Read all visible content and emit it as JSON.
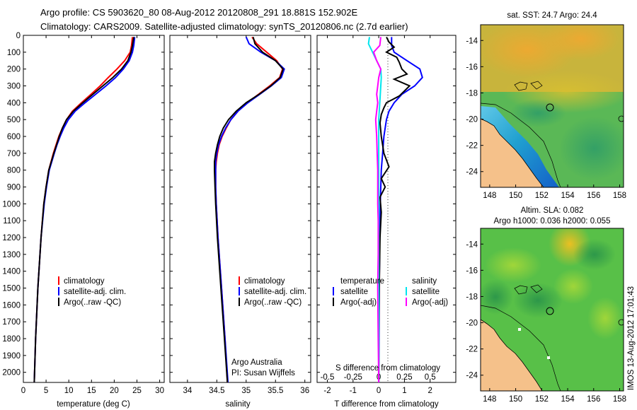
{
  "header": {
    "line1": "Argo profile: CS 5903620_80 08-Aug-2012 20120808_291 18.881S 152.902E",
    "line2": "Climatology: CARS2009. Satellite-adjusted climatology: synTS_20120806.nc (2.7d earlier)"
  },
  "side_stamp": "IMOS 13-Aug-2012 17:01:43",
  "colors": {
    "climatology": "#ff0000",
    "satellite": "#0000ff",
    "argo": "#000000",
    "s_satellite": "#00e5ee",
    "s_argo": "#ff00ff",
    "land": "#f5c18a",
    "coast": "#000000"
  },
  "chart_data": [
    {
      "type": "line",
      "name": "temperature-profile",
      "xlabel": "temperature (deg C)",
      "ylabel": "",
      "xlim": [
        0,
        31
      ],
      "ylim": [
        2060,
        0
      ],
      "x_ticks": [
        0,
        5,
        10,
        15,
        20,
        25,
        30
      ],
      "y_ticks": [
        0,
        100,
        200,
        300,
        400,
        500,
        600,
        700,
        800,
        900,
        1000,
        1100,
        1200,
        1300,
        1400,
        1500,
        1600,
        1700,
        1800,
        1900,
        2000
      ],
      "legend": [
        "climatology",
        "satellite-adj. clim.",
        "Argo(..raw -QC)"
      ],
      "legend_position": "lower-right",
      "series": [
        {
          "name": "climatology",
          "color": "#ff0000",
          "depth": [
            10,
            60,
            100,
            150,
            200,
            250,
            300,
            350,
            400,
            450,
            500,
            550,
            600,
            650,
            700,
            800,
            900,
            1000,
            1200,
            1500,
            1800,
            2060
          ],
          "value": [
            24.0,
            23.8,
            23.5,
            22.3,
            20.6,
            18.7,
            16.9,
            14.9,
            12.8,
            10.8,
            9.5,
            8.6,
            7.8,
            7.2,
            6.6,
            5.6,
            5.0,
            4.5,
            3.9,
            3.2,
            2.7,
            2.4
          ]
        },
        {
          "name": "satellite-adj. clim.",
          "color": "#0000ff",
          "depth": [
            10,
            60,
            100,
            150,
            200,
            250,
            300,
            350,
            400,
            450,
            500,
            550,
            600,
            650,
            700,
            800,
            900,
            1000,
            1200,
            1500,
            1800,
            2060
          ],
          "value": [
            24.5,
            24.3,
            24.0,
            23.3,
            22.0,
            20.3,
            18.2,
            15.9,
            13.6,
            11.4,
            9.9,
            8.9,
            8.1,
            7.4,
            6.8,
            5.7,
            5.1,
            4.6,
            3.9,
            3.2,
            2.7,
            2.4
          ]
        },
        {
          "name": "Argo(..raw -QC)",
          "color": "#000000",
          "depth": [
            10,
            60,
            100,
            150,
            200,
            250,
            300,
            350,
            400,
            450,
            500,
            550,
            600,
            650,
            700,
            800,
            900,
            1000,
            1200,
            1500,
            1800,
            2060
          ],
          "value": [
            24.3,
            24.0,
            23.7,
            23.0,
            21.6,
            19.7,
            17.5,
            15.3,
            13.1,
            11.0,
            9.5,
            8.6,
            7.9,
            7.3,
            6.7,
            5.6,
            5.0,
            4.5,
            3.9,
            3.2,
            2.7,
            2.4
          ]
        }
      ]
    },
    {
      "type": "line",
      "name": "salinity-profile",
      "xlabel": "salinity",
      "xlim": [
        33.7,
        36.1
      ],
      "ylim": [
        2060,
        0
      ],
      "x_ticks": [
        34,
        34.5,
        35,
        35.5,
        36
      ],
      "legend": [
        "climatology",
        "satellite-adj. clim.",
        "Argo(..raw -QC)"
      ],
      "legend_position": "lower-right",
      "annotation": [
        "Argo Australia",
        "PI: Susan Wijffels"
      ],
      "series": [
        {
          "name": "climatology",
          "color": "#ff0000",
          "depth": [
            10,
            50,
            100,
            150,
            200,
            250,
            300,
            350,
            400,
            450,
            500,
            550,
            600,
            650,
            700,
            750,
            800,
            900,
            1000,
            1200,
            1500,
            1800,
            2060
          ],
          "value": [
            35.1,
            35.18,
            35.35,
            35.52,
            35.62,
            35.57,
            35.4,
            35.21,
            35.02,
            34.86,
            34.74,
            34.66,
            34.59,
            34.54,
            34.51,
            34.49,
            34.48,
            34.48,
            34.49,
            34.52,
            34.58,
            34.64,
            34.68
          ]
        },
        {
          "name": "satellite-adj. clim.",
          "color": "#0000ff",
          "depth": [
            10,
            50,
            100,
            150,
            200,
            250,
            300,
            350,
            400,
            450,
            500,
            550,
            600,
            650,
            700,
            750,
            800,
            900,
            1000,
            1200,
            1500,
            1800,
            2060
          ],
          "value": [
            35.0,
            35.05,
            35.25,
            35.5,
            35.65,
            35.6,
            35.43,
            35.23,
            35.03,
            34.86,
            34.74,
            34.65,
            34.58,
            34.53,
            34.5,
            34.48,
            34.48,
            34.48,
            34.49,
            34.52,
            34.58,
            34.64,
            34.69
          ]
        },
        {
          "name": "Argo(..raw -QC)",
          "color": "#000000",
          "depth": [
            10,
            50,
            100,
            150,
            200,
            250,
            300,
            350,
            400,
            450,
            500,
            550,
            600,
            650,
            700,
            750,
            800,
            900,
            1000,
            1200,
            1500,
            1800,
            2060
          ],
          "value": [
            35.12,
            35.15,
            35.28,
            35.5,
            35.63,
            35.58,
            35.42,
            35.22,
            35.0,
            34.83,
            34.7,
            34.61,
            34.55,
            34.51,
            34.48,
            34.46,
            34.46,
            34.47,
            34.48,
            34.51,
            34.57,
            34.63,
            34.68
          ]
        }
      ]
    },
    {
      "type": "line",
      "name": "difference-profile",
      "xlabel_bottom": "T difference from climatology",
      "xlabel_top": "S difference from climatology",
      "xlim": [
        -2.4,
        3.0
      ],
      "ylim": [
        2060,
        0
      ],
      "x_ticks": [
        -2,
        -1,
        0,
        1,
        2
      ],
      "x_ticks_top": [
        -0.5,
        -0.25,
        0,
        0.25,
        0.5
      ],
      "legend": [
        {
          "group": "temperature",
          "items": [
            "satellite",
            "Argo(-adj)"
          ]
        },
        {
          "group": "salinity",
          "items": [
            "satellite",
            "Argo(-adj)"
          ]
        }
      ],
      "legend_position": "top",
      "series": [
        {
          "name": "temperature satellite",
          "color": "#0000ff",
          "depth": [
            10,
            60,
            100,
            150,
            200,
            250,
            300,
            350,
            400,
            450,
            500,
            600,
            700,
            800,
            1000,
            1200,
            1500,
            1800,
            2060
          ],
          "value": [
            0.5,
            0.5,
            0.6,
            1.1,
            1.6,
            1.7,
            1.4,
            0.9,
            0.6,
            0.4,
            0.3,
            0.2,
            0.15,
            0.1,
            0.06,
            0.04,
            0.02,
            0.01,
            0.0
          ]
        },
        {
          "name": "temperature Argo(-adj)",
          "color": "#000000",
          "depth": [
            10,
            40,
            70,
            100,
            130,
            160,
            200,
            230,
            260,
            300,
            330,
            360,
            400,
            430,
            470,
            520,
            600,
            700,
            780,
            850,
            900,
            960,
            1050,
            1200,
            1500,
            1800,
            2060
          ],
          "value": [
            0.3,
            0.4,
            0.6,
            0.3,
            0.7,
            0.8,
            0.9,
            1.1,
            0.6,
            1.2,
            1.0,
            0.8,
            0.3,
            0.2,
            0.1,
            0.05,
            0.1,
            0.2,
            0.4,
            0.1,
            0.25,
            0.05,
            0.1,
            0.05,
            0.02,
            0.0,
            0.0
          ]
        },
        {
          "name": "salinity satellite",
          "color": "#00e5ee",
          "depth": [
            10,
            50,
            100,
            150,
            200,
            250,
            300,
            400,
            500,
            600,
            700,
            800,
            1000,
            1200,
            1500,
            1800,
            2060
          ],
          "value": [
            -0.09,
            -0.1,
            -0.06,
            -0.02,
            0.02,
            0.025,
            0.02,
            0.01,
            0.0,
            0.0,
            0.0,
            0.0,
            0.0,
            0.0,
            0.0,
            0.0,
            0.0
          ]
        },
        {
          "name": "salinity Argo(-adj)",
          "color": "#ff00ff",
          "depth": [
            10,
            60,
            100,
            150,
            200,
            250,
            300,
            350,
            400,
            450,
            500,
            600,
            700,
            800,
            900,
            1000,
            1100,
            1300,
            1500,
            1800,
            2060
          ],
          "value": [
            0.02,
            0.01,
            -0.05,
            -0.02,
            0.02,
            0.0,
            -0.01,
            -0.02,
            -0.01,
            -0.02,
            -0.03,
            -0.02,
            -0.015,
            -0.01,
            -0.01,
            -0.01,
            -0.005,
            -0.005,
            -0.01,
            -0.005,
            0.0
          ]
        }
      ]
    },
    {
      "type": "heatmap",
      "name": "sst-map",
      "title": "sat. SST: 24.7 Argo: 24.4",
      "xlim": [
        147.3,
        158.3
      ],
      "ylim": [
        -25.2,
        -12.8
      ],
      "x_ticks": [
        148,
        150,
        152,
        154,
        156,
        158
      ],
      "y_ticks": [
        -14,
        -16,
        -18,
        -20,
        -22,
        -24
      ]
    },
    {
      "type": "heatmap",
      "name": "sla-map",
      "title": [
        "Altim. SLA: 0.082",
        "Argo h1000: 0.036 h2000: 0.055"
      ],
      "xlim": [
        147.3,
        158.3
      ],
      "ylim": [
        -25.2,
        -12.8
      ],
      "x_ticks": [
        148,
        150,
        152,
        154,
        156,
        158
      ],
      "y_ticks": [
        -14,
        -16,
        -18,
        -20,
        -22,
        -24
      ]
    }
  ]
}
